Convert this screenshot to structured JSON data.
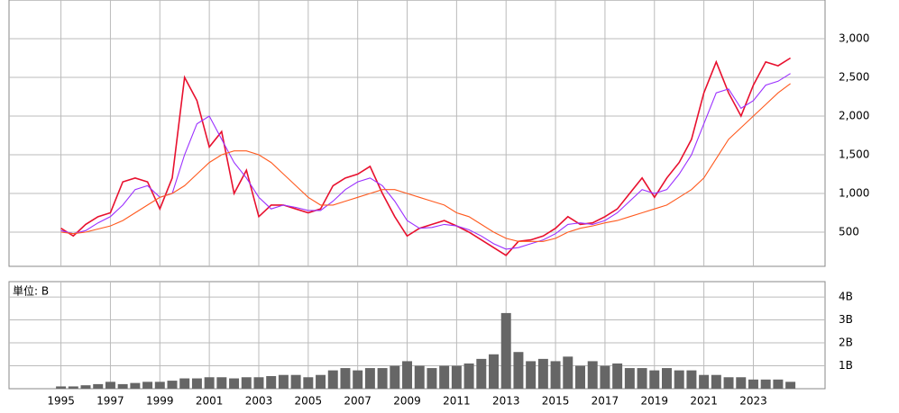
{
  "chart_data": [
    {
      "type": "line",
      "x": [
        1995,
        1995.5,
        1996,
        1996.5,
        1997,
        1997.5,
        1998,
        1998.5,
        1999,
        1999.5,
        2000,
        2000.5,
        2001,
        2001.5,
        2002,
        2002.5,
        2003,
        2003.5,
        2004,
        2004.5,
        2005,
        2005.5,
        2006,
        2006.5,
        2007,
        2007.5,
        2008,
        2008.5,
        2009,
        2009.5,
        2010,
        2010.5,
        2011,
        2011.5,
        2012,
        2012.5,
        2013,
        2013.5,
        2014,
        2014.5,
        2015,
        2015.5,
        2016,
        2016.5,
        2017,
        2017.5,
        2018,
        2018.5,
        2019,
        2019.5,
        2020,
        2020.5,
        2021,
        2021.5,
        2022,
        2022.5,
        2023,
        2023.5,
        2024,
        2024.5
      ],
      "series": [
        {
          "color": "#e8102e",
          "values": [
            550,
            450,
            600,
            700,
            750,
            1150,
            1200,
            1150,
            800,
            1200,
            2500,
            2200,
            1600,
            1800,
            1000,
            1300,
            700,
            850,
            850,
            800,
            750,
            800,
            1100,
            1200,
            1250,
            1350,
            1000,
            700,
            450,
            550,
            600,
            650,
            580,
            500,
            400,
            300,
            200,
            380,
            400,
            450,
            550,
            700,
            600,
            620,
            700,
            800,
            1000,
            1200,
            950,
            1200,
            1400,
            1700,
            2300,
            2700,
            2300,
            2000,
            2400,
            2700,
            2650,
            2750
          ]
        },
        {
          "color": "#9b30ff",
          "values": [
            520,
            480,
            520,
            620,
            700,
            850,
            1050,
            1100,
            950,
            1000,
            1500,
            1900,
            2000,
            1700,
            1400,
            1200,
            950,
            800,
            850,
            820,
            780,
            780,
            900,
            1050,
            1150,
            1200,
            1100,
            900,
            650,
            550,
            560,
            600,
            580,
            530,
            450,
            350,
            280,
            300,
            350,
            400,
            480,
            600,
            620,
            600,
            650,
            750,
            900,
            1050,
            1000,
            1050,
            1250,
            1500,
            1900,
            2300,
            2350,
            2100,
            2200,
            2400,
            2450,
            2550
          ]
        },
        {
          "color": "#ff5a1f",
          "values": [
            500,
            480,
            500,
            540,
            580,
            650,
            750,
            850,
            950,
            1000,
            1100,
            1250,
            1400,
            1500,
            1550,
            1550,
            1500,
            1400,
            1250,
            1100,
            950,
            850,
            850,
            900,
            950,
            1000,
            1050,
            1050,
            1000,
            950,
            900,
            850,
            750,
            700,
            600,
            500,
            420,
            380,
            380,
            380,
            420,
            500,
            550,
            580,
            620,
            650,
            700,
            750,
            800,
            850,
            950,
            1050,
            1200,
            1450,
            1700,
            1850,
            2000,
            2150,
            2300,
            2420
          ]
        }
      ],
      "xlim": [
        1992.9,
        2025.9
      ],
      "ylim": [
        58,
        3500
      ],
      "yticks": [
        500,
        {
          "value": 1000,
          "label": "1,000"
        },
        {
          "value": 1500,
          "label": "1,500"
        },
        {
          "value": 2000,
          "label": "2,000"
        },
        {
          "value": 2500,
          "label": "2,500"
        },
        {
          "value": 3000,
          "label": "3,000"
        }
      ],
      "grid": true
    },
    {
      "type": "bar",
      "unit_label": "単位: B",
      "x": [
        1995,
        1995.5,
        1996,
        1996.5,
        1997,
        1997.5,
        1998,
        1998.5,
        1999,
        1999.5,
        2000,
        2000.5,
        2001,
        2001.5,
        2002,
        2002.5,
        2003,
        2003.5,
        2004,
        2004.5,
        2005,
        2005.5,
        2006,
        2006.5,
        2007,
        2007.5,
        2008,
        2008.5,
        2009,
        2009.5,
        2010,
        2010.5,
        2011,
        2011.5,
        2012,
        2012.5,
        2013,
        2013.5,
        2014,
        2014.5,
        2015,
        2015.5,
        2016,
        2016.5,
        2017,
        2017.5,
        2018,
        2018.5,
        2019,
        2019.5,
        2020,
        2020.5,
        2021,
        2021.5,
        2022,
        2022.5,
        2023,
        2023.5,
        2024,
        2024.5
      ],
      "values": [
        0.1,
        0.1,
        0.15,
        0.2,
        0.3,
        0.2,
        0.25,
        0.3,
        0.3,
        0.35,
        0.45,
        0.45,
        0.5,
        0.5,
        0.45,
        0.5,
        0.5,
        0.55,
        0.6,
        0.6,
        0.5,
        0.6,
        0.8,
        0.9,
        0.8,
        0.9,
        0.9,
        1.0,
        1.2,
        1.0,
        0.9,
        1.0,
        1.0,
        1.1,
        1.3,
        1.5,
        3.3,
        1.6,
        1.2,
        1.3,
        1.2,
        1.4,
        1.0,
        1.2,
        1.0,
        1.1,
        0.9,
        0.9,
        0.8,
        0.9,
        0.8,
        0.8,
        0.6,
        0.6,
        0.5,
        0.5,
        0.4,
        0.4,
        0.4,
        0.3
      ],
      "color": "#666666",
      "xlim": [
        1992.9,
        2025.9
      ],
      "ylim": [
        0,
        4.67
      ],
      "xticks": [
        1995,
        1997,
        1999,
        2001,
        2003,
        2005,
        2007,
        2009,
        2011,
        2013,
        2015,
        2017,
        2019,
        2021,
        2023
      ],
      "yticks": [
        {
          "value": 1,
          "label": "1B"
        },
        {
          "value": 2,
          "label": "2B"
        },
        {
          "value": 3,
          "label": "3B"
        },
        {
          "value": 4,
          "label": "4B"
        }
      ],
      "grid": true
    }
  ]
}
